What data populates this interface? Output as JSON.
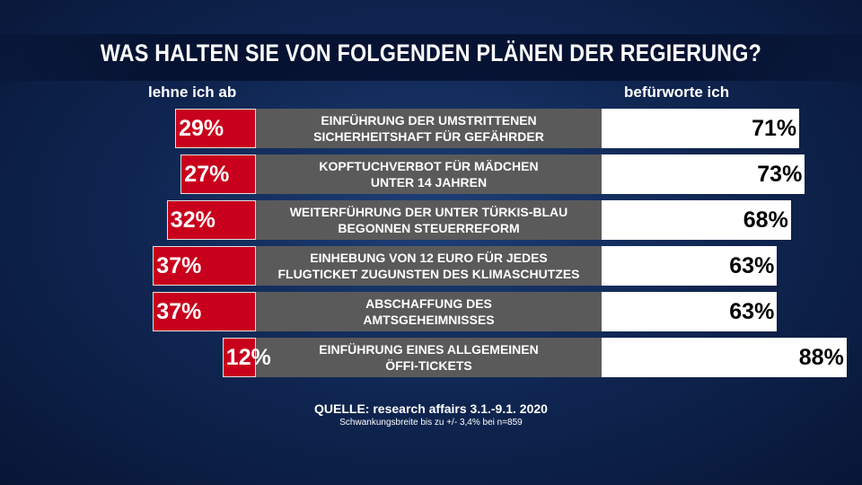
{
  "chart_data": {
    "type": "diverging-bar",
    "title": "WAS HALTEN SIE VON FOLGENDEN PLÄNEN DER REGIERUNG?",
    "categories": [
      "EINFÜHRUNG DER UMSTRITTENEN\nSICHERHEITSHAFT FÜR GEFÄHRDER",
      "KOPFTUCHVERBOT FÜR MÄDCHEN\nUNTER 14 JAHREN",
      "WEITERFÜHRUNG DER UNTER TÜRKIS-BLAU\nBEGONNEN STEUERREFORM",
      "EINHEBUNG VON 12 EURO FÜR JEDES\nFLUGTICKET ZUGUNSTEN DES KLIMASCHUTZES",
      "ABSCHAFFUNG DES\nAMTSGEHEIMNISSES",
      "EINFÜHRUNG EINES ALLGEMEINEN\nÖFFI-TICKETS"
    ],
    "series": [
      {
        "name": "lehne ich ab",
        "color": "#c8001c",
        "values": [
          29,
          27,
          32,
          37,
          37,
          12
        ],
        "value_labels": [
          "29%",
          "27%",
          "32%",
          "37%",
          "37%",
          "12%"
        ]
      },
      {
        "name": "befürworte ich",
        "color": "#ffffff",
        "values": [
          71,
          73,
          68,
          63,
          63,
          88
        ],
        "value_labels": [
          "71%",
          "73%",
          "68%",
          "63%",
          "63%",
          "88%"
        ]
      }
    ],
    "source": "QUELLE: research affairs 3.1.-9.1. 2020",
    "note": "Schwankungsbreite bis zu +/- 3,4% bei n=859"
  }
}
